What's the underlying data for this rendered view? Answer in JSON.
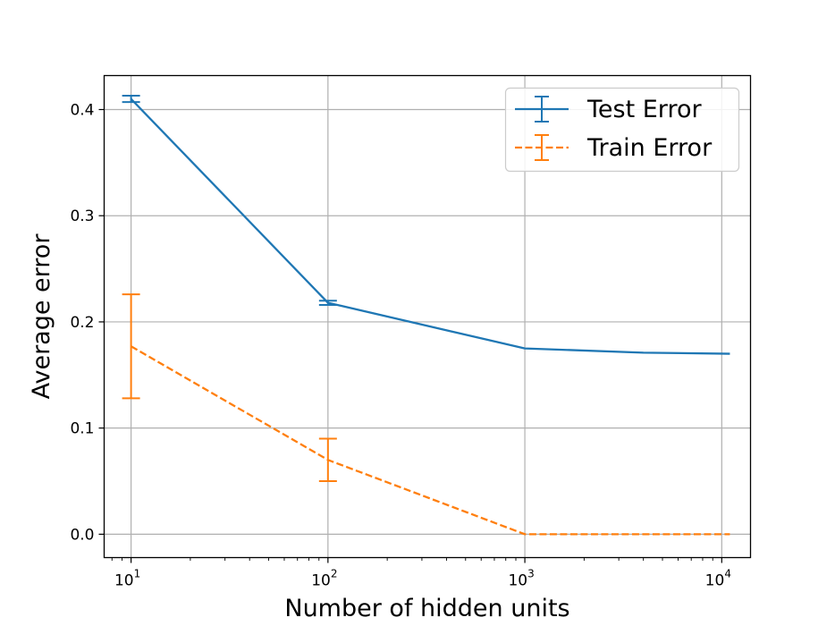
{
  "chart_data": {
    "type": "line",
    "title": "",
    "xlabel": "Number of hidden units",
    "ylabel": "Average error",
    "x_scale": "log",
    "xlim": [
      7.3,
      14000
    ],
    "ylim": [
      -0.022,
      0.432
    ],
    "grid": true,
    "legend_position": "top-right",
    "x_ticks": [
      {
        "base": "10",
        "exp": "1",
        "value": 10
      },
      {
        "base": "10",
        "exp": "2",
        "value": 100
      },
      {
        "base": "10",
        "exp": "3",
        "value": 1000
      },
      {
        "base": "10",
        "exp": "4",
        "value": 10000
      }
    ],
    "y_ticks": [
      {
        "label": "0.0",
        "value": 0.0
      },
      {
        "label": "0.1",
        "value": 0.1
      },
      {
        "label": "0.2",
        "value": 0.2
      },
      {
        "label": "0.3",
        "value": 0.3
      },
      {
        "label": "0.4",
        "value": 0.4
      }
    ],
    "series": [
      {
        "name": "Test Error",
        "color": "#1f77b4",
        "dash": "solid",
        "points": [
          {
            "x": 10,
            "y": 0.41,
            "err": 0.003
          },
          {
            "x": 100,
            "y": 0.218,
            "err": 0.002
          },
          {
            "x": 1000,
            "y": 0.175,
            "err": 0.0
          },
          {
            "x": 4000,
            "y": 0.171,
            "err": 0.0
          },
          {
            "x": 11000,
            "y": 0.17,
            "err": 0.0
          }
        ]
      },
      {
        "name": "Train Error",
        "color": "#ff7f0e",
        "dash": "dashed",
        "points": [
          {
            "x": 10,
            "y": 0.177,
            "err": 0.049
          },
          {
            "x": 100,
            "y": 0.07,
            "err": 0.02
          },
          {
            "x": 1000,
            "y": 0.0,
            "err": 0.0
          },
          {
            "x": 4000,
            "y": 0.0,
            "err": 0.0
          },
          {
            "x": 11000,
            "y": 0.0,
            "err": 0.0
          }
        ]
      }
    ]
  }
}
